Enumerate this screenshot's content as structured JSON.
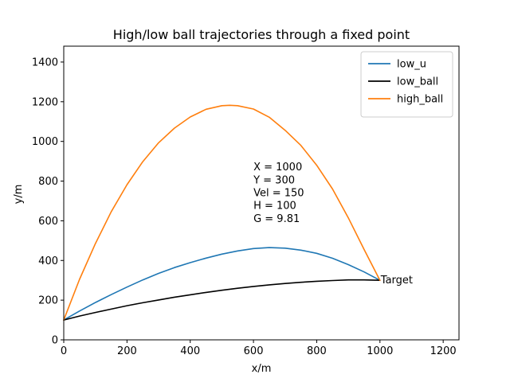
{
  "chart_data": {
    "type": "line",
    "title": "High/low ball trajectories through a fixed point",
    "xlabel": "x/m",
    "ylabel": "y/m",
    "xlim": [
      0,
      1250
    ],
    "ylim": [
      0,
      1480
    ],
    "xticks": [
      0,
      200,
      400,
      600,
      800,
      1000,
      1200
    ],
    "yticks": [
      0,
      200,
      400,
      600,
      800,
      1000,
      1200,
      1400
    ],
    "grid": false,
    "legend_position": "top-right",
    "series": [
      {
        "name": "low_u",
        "color": "#1f77b4",
        "x": [
          0,
          50,
          100,
          150,
          200,
          250,
          300,
          350,
          400,
          450,
          500,
          550,
          600,
          650,
          700,
          750,
          800,
          850,
          900,
          950,
          1000
        ],
        "y": [
          100,
          145,
          188,
          228,
          266,
          302,
          335,
          364,
          389,
          412,
          432,
          448,
          460,
          465,
          462,
          452,
          436,
          411,
          379,
          342,
          300
        ]
      },
      {
        "name": "low_ball",
        "color": "#000000",
        "x": [
          0,
          50,
          100,
          150,
          200,
          250,
          300,
          350,
          400,
          450,
          500,
          550,
          600,
          650,
          700,
          750,
          800,
          850,
          900,
          950,
          1000
        ],
        "y": [
          100,
          120,
          138,
          155,
          172,
          187,
          201,
          215,
          227,
          239,
          250,
          260,
          269,
          277,
          284,
          290,
          295,
          299,
          302,
          302,
          300
        ]
      },
      {
        "name": "high_ball",
        "color": "#ff7f0e",
        "x": [
          0,
          50,
          100,
          150,
          200,
          250,
          300,
          350,
          400,
          450,
          500,
          525,
          550,
          600,
          650,
          700,
          750,
          800,
          850,
          900,
          950,
          1000
        ],
        "y": [
          100,
          305,
          485,
          645,
          782,
          898,
          993,
          1067,
          1123,
          1162,
          1180,
          1182,
          1180,
          1163,
          1122,
          1056,
          980,
          880,
          760,
          615,
          455,
          300
        ]
      }
    ],
    "annotations": [
      {
        "text": "X = 1000",
        "x": 600,
        "y": 870
      },
      {
        "text": "Y = 300",
        "x": 600,
        "y": 805
      },
      {
        "text": "Vel = 150",
        "x": 600,
        "y": 740
      },
      {
        "text": "H = 100",
        "x": 600,
        "y": 675
      },
      {
        "text": "G = 9.81",
        "x": 600,
        "y": 610
      },
      {
        "text": "Target",
        "x": 1000,
        "y": 300
      }
    ]
  }
}
